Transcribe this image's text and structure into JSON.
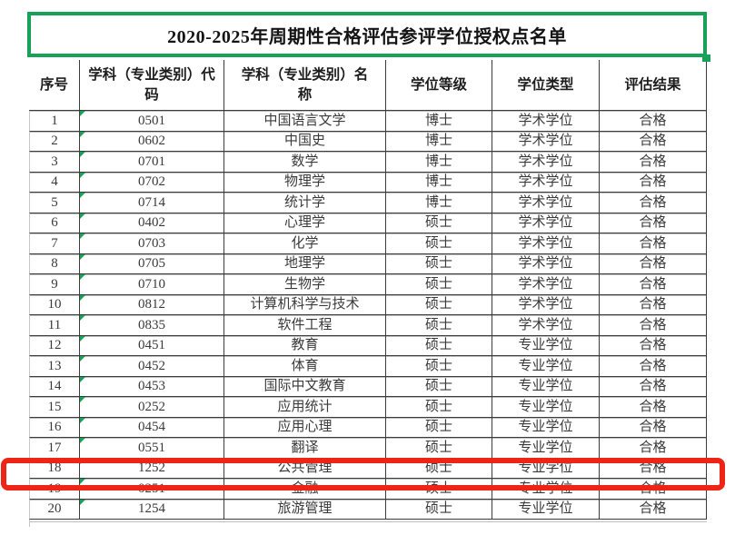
{
  "title": "2020-2025年周期性合格评估参评学位授权点名单",
  "table": {
    "headers": [
      "序号",
      "学科（专业类别）代\n码",
      "学科（专业类别）名\n称",
      "学位等级",
      "学位类型",
      "评估结果"
    ],
    "rows": [
      [
        "1",
        "0501",
        "中国语言文学",
        "博士",
        "学术学位",
        "合格"
      ],
      [
        "2",
        "0602",
        "中国史",
        "博士",
        "学术学位",
        "合格"
      ],
      [
        "3",
        "0701",
        "数学",
        "博士",
        "学术学位",
        "合格"
      ],
      [
        "4",
        "0702",
        "物理学",
        "博士",
        "学术学位",
        "合格"
      ],
      [
        "5",
        "0714",
        "统计学",
        "博士",
        "学术学位",
        "合格"
      ],
      [
        "6",
        "0402",
        "心理学",
        "硕士",
        "学术学位",
        "合格"
      ],
      [
        "7",
        "0703",
        "化学",
        "硕士",
        "学术学位",
        "合格"
      ],
      [
        "8",
        "0705",
        "地理学",
        "硕士",
        "学术学位",
        "合格"
      ],
      [
        "9",
        "0710",
        "生物学",
        "硕士",
        "学术学位",
        "合格"
      ],
      [
        "10",
        "0812",
        "计算机科学与技术",
        "硕士",
        "学术学位",
        "合格"
      ],
      [
        "11",
        "0835",
        "软件工程",
        "硕士",
        "学术学位",
        "合格"
      ],
      [
        "12",
        "0451",
        "教育",
        "硕士",
        "专业学位",
        "合格"
      ],
      [
        "13",
        "0452",
        "体育",
        "硕士",
        "专业学位",
        "合格"
      ],
      [
        "14",
        "0453",
        "国际中文教育",
        "硕士",
        "专业学位",
        "合格"
      ],
      [
        "15",
        "0252",
        "应用统计",
        "硕士",
        "专业学位",
        "合格"
      ],
      [
        "16",
        "0454",
        "应用心理",
        "硕士",
        "专业学位",
        "合格"
      ],
      [
        "17",
        "0551",
        "翻译",
        "硕士",
        "专业学位",
        "合格"
      ],
      [
        "18",
        "1252",
        "公共管理",
        "硕士",
        "专业学位",
        "合格"
      ],
      [
        "19",
        "0251",
        "金融",
        "硕士",
        "专业学位",
        "合格"
      ],
      [
        "20",
        "1254",
        "旅游管理",
        "硕士",
        "专业学位",
        "合格"
      ]
    ]
  },
  "annotations": {
    "highlighted_row_seq": "18",
    "code_cell_flag_icon": "green-triangle"
  },
  "colors": {
    "green_annotation": "#18a258",
    "red_annotation": "#ee2417",
    "grid_line": "#3c3c3c",
    "light_grid": "#c6c6c6",
    "ghost_line": "#bdbdbd"
  }
}
